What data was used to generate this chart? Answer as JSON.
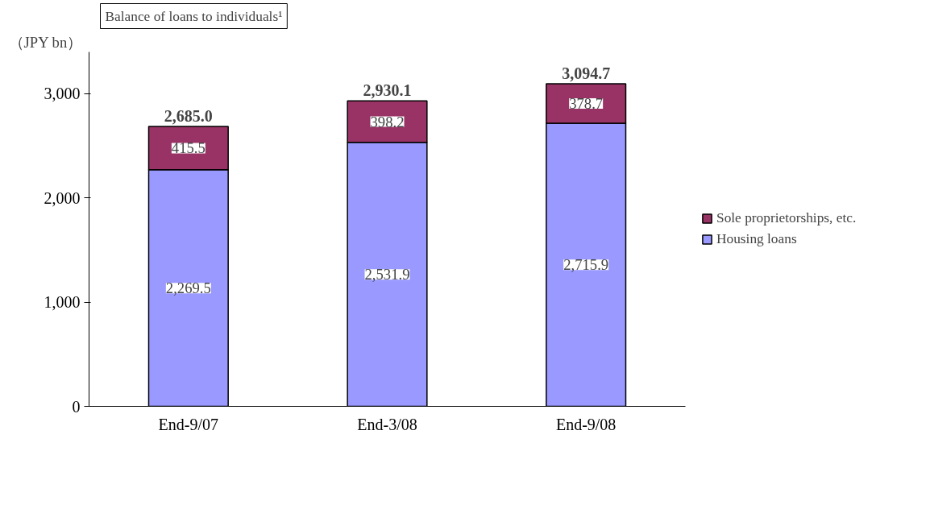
{
  "chart_data": {
    "type": "bar",
    "title": "Balance of loans to individuals¹",
    "ylabel": "（JPY bn）",
    "categories": [
      "End-9/07",
      "End-3/08",
      "End-9/08"
    ],
    "series": [
      {
        "name": "Housing loans",
        "color": "#9999ff",
        "values": [
          2269.5,
          2531.9,
          2715.9
        ],
        "value_labels": [
          "2,269.5",
          "2,531.9",
          "2,715.9"
        ]
      },
      {
        "name": "Sole proprietorships, etc.",
        "color": "#993366",
        "values": [
          415.5,
          398.2,
          378.7
        ],
        "value_labels": [
          "415.5",
          "398.2",
          "378.7"
        ]
      }
    ],
    "stacked": true,
    "totals": [
      "2,685.0",
      "2,930.1",
      "3,094.7"
    ],
    "ylim": [
      0,
      3400
    ],
    "yticks": [
      0,
      {
        "value": 1000,
        "label": "1,000"
      },
      {
        "value": 2000,
        "label": "2,000"
      },
      {
        "value": 3000,
        "label": "3,000"
      }
    ],
    "grid": false,
    "legend": "right"
  }
}
